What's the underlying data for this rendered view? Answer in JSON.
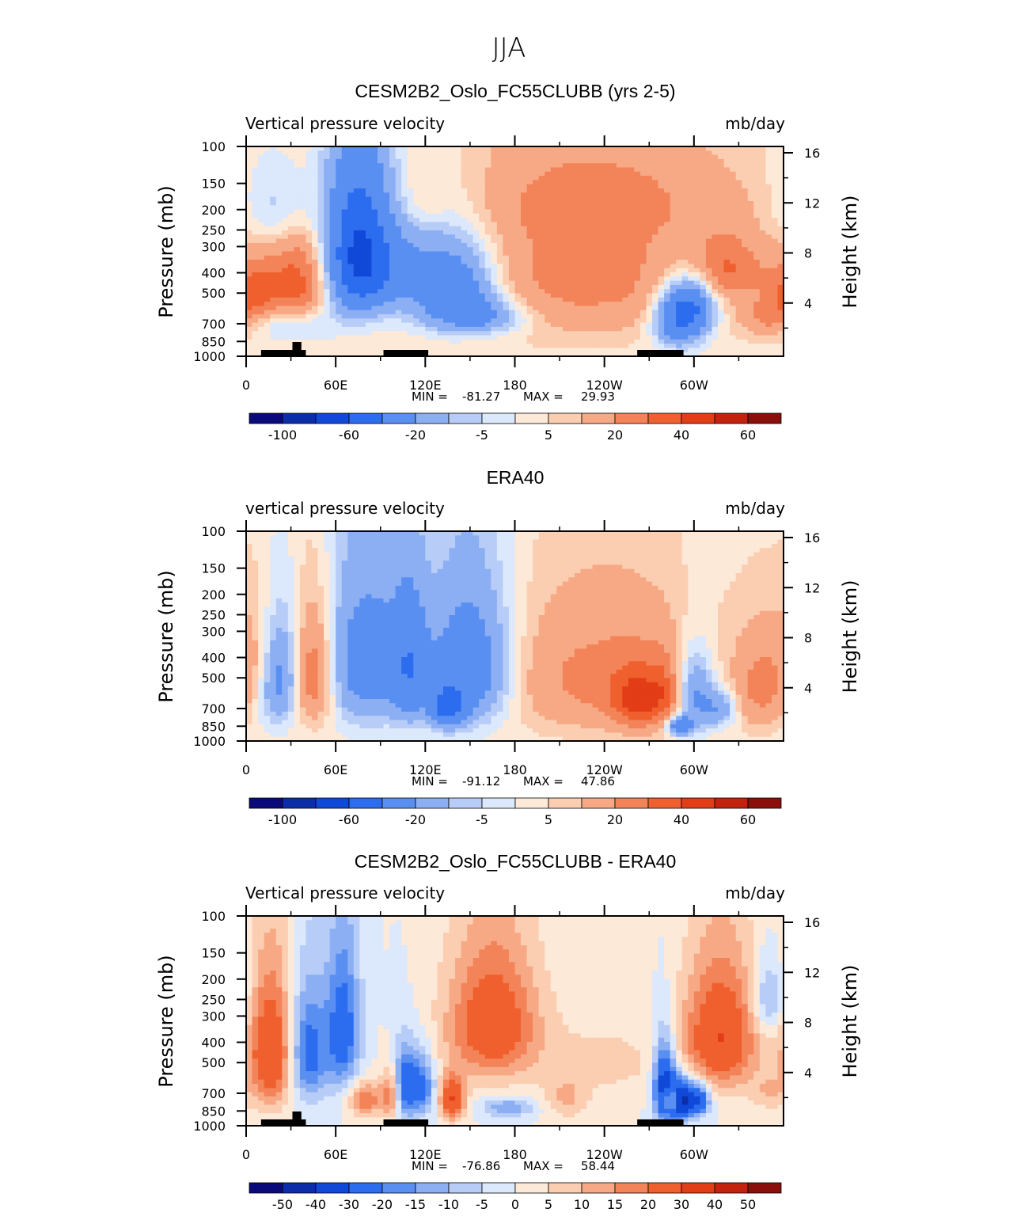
{
  "figure": {
    "title": "JJA"
  },
  "colors": {
    "levels_main": [
      -120,
      -100,
      -80,
      -60,
      -40,
      -20,
      -10,
      -5,
      0,
      5,
      10,
      20,
      30,
      40,
      50,
      60,
      80
    ],
    "levels_diff": [
      -60,
      -50,
      -40,
      -30,
      -20,
      -15,
      -10,
      -5,
      0,
      5,
      10,
      15,
      20,
      30,
      40,
      50,
      60
    ],
    "palette": [
      "#0a0a7a",
      "#0b2ea8",
      "#1048d8",
      "#2c6cef",
      "#5a8ff2",
      "#8caff4",
      "#b7cdf7",
      "#dce8fb",
      "#fde9d8",
      "#fbcdb1",
      "#f7a985",
      "#f38358",
      "#f0602e",
      "#e23d16",
      "#c2230f",
      "#8a0f0a"
    ]
  },
  "chart_data": [
    {
      "type": "heatmap",
      "title": "CESM2B2_Oslo_FC55CLUBB (yrs 2-5)",
      "left_label": "Vertical pressure velocity",
      "right_label": "mb/day",
      "ylabel": "Pressure (mb)",
      "y2label": "Height (km)",
      "xticks": [
        "0",
        "60E",
        "120E",
        "180",
        "120W",
        "60W"
      ],
      "xrange": [
        0,
        360
      ],
      "yticks": [
        "100",
        "150",
        "200",
        "250",
        "300",
        "400",
        "500",
        "700",
        "850",
        "1000"
      ],
      "y2ticks": [
        "16",
        "12",
        "8",
        "4"
      ],
      "stats": {
        "min_label": "MIN =",
        "min": "-81.27",
        "max_label": "MAX =",
        "max": "29.93"
      },
      "colorbar_labels": [
        "-100",
        "-60",
        "-20",
        "-5",
        "5",
        "20",
        "40",
        "60"
      ],
      "scale": "main",
      "blobs": [
        {
          "lon": 20,
          "p": 500,
          "w": 16,
          "h": 420,
          "v": 18
        },
        {
          "lon": 38,
          "p": 450,
          "w": 12,
          "h": 350,
          "v": 22
        },
        {
          "lon": 28,
          "p": 700,
          "w": 18,
          "h": 200,
          "v": -22
        },
        {
          "lon": 22,
          "p": 200,
          "w": 18,
          "h": 150,
          "v": -18
        },
        {
          "lon": 75,
          "p": 320,
          "w": 15,
          "h": 380,
          "v": -58
        },
        {
          "lon": 95,
          "p": 380,
          "w": 22,
          "h": 280,
          "v": -22
        },
        {
          "lon": 140,
          "p": 470,
          "w": 22,
          "h": 340,
          "v": -42
        },
        {
          "lon": 160,
          "p": 650,
          "w": 22,
          "h": 180,
          "v": -22
        },
        {
          "lon": 120,
          "p": 180,
          "w": 12,
          "h": 80,
          "v": 6
        },
        {
          "lon": 225,
          "p": 400,
          "w": 70,
          "h": 500,
          "v": 22
        },
        {
          "lon": 240,
          "p": 180,
          "w": 60,
          "h": 120,
          "v": 10
        },
        {
          "lon": 290,
          "p": 640,
          "w": 12,
          "h": 320,
          "v": -50
        },
        {
          "lon": 303,
          "p": 550,
          "w": 10,
          "h": 260,
          "v": -25
        },
        {
          "lon": 320,
          "p": 380,
          "w": 20,
          "h": 180,
          "v": 22
        },
        {
          "lon": 350,
          "p": 650,
          "w": 12,
          "h": 200,
          "v": 18
        },
        {
          "lon": 5,
          "p": 500,
          "w": 10,
          "h": 200,
          "v": 18
        }
      ],
      "bias": 2.5
    },
    {
      "type": "heatmap",
      "title": "ERA40",
      "left_label": "vertical pressure velocity",
      "right_label": "mb/day",
      "ylabel": "Pressure (mb)",
      "y2label": "Height (km)",
      "xticks": [
        "0",
        "60E",
        "120E",
        "180",
        "120W",
        "60W"
      ],
      "xrange": [
        0,
        360
      ],
      "yticks": [
        "100",
        "150",
        "200",
        "250",
        "300",
        "400",
        "500",
        "700",
        "850",
        "1000"
      ],
      "y2ticks": [
        "16",
        "12",
        "8",
        "4"
      ],
      "stats": {
        "min_label": "MIN =",
        "min": "-91.12",
        "max_label": "MAX =",
        "max": "47.86"
      },
      "colorbar_labels": [
        "-100",
        "-60",
        "-20",
        "-5",
        "5",
        "20",
        "40",
        "60"
      ],
      "scale": "main",
      "blobs": [
        {
          "lon": 22,
          "p": 500,
          "w": 10,
          "h": 400,
          "v": -30
        },
        {
          "lon": 45,
          "p": 480,
          "w": 10,
          "h": 420,
          "v": 32
        },
        {
          "lon": 8,
          "p": 400,
          "w": 10,
          "h": 350,
          "v": 12
        },
        {
          "lon": 82,
          "p": 420,
          "w": 22,
          "h": 500,
          "v": -32
        },
        {
          "lon": 110,
          "p": 450,
          "w": 8,
          "h": 450,
          "v": -25
        },
        {
          "lon": 150,
          "p": 450,
          "w": 20,
          "h": 480,
          "v": -38
        },
        {
          "lon": 135,
          "p": 700,
          "w": 8,
          "h": 220,
          "v": -40
        },
        {
          "lon": 240,
          "p": 500,
          "w": 50,
          "h": 500,
          "v": 22
        },
        {
          "lon": 262,
          "p": 650,
          "w": 12,
          "h": 300,
          "v": 28
        },
        {
          "lon": 282,
          "p": 600,
          "w": 8,
          "h": 300,
          "v": 18
        },
        {
          "lon": 300,
          "p": 600,
          "w": 10,
          "h": 380,
          "v": -32
        },
        {
          "lon": 318,
          "p": 700,
          "w": 8,
          "h": 200,
          "v": -20
        },
        {
          "lon": 345,
          "p": 550,
          "w": 12,
          "h": 400,
          "v": 20
        },
        {
          "lon": 290,
          "p": 850,
          "w": 6,
          "h": 120,
          "v": -40
        }
      ],
      "bias": 2
    },
    {
      "type": "heatmap",
      "title": "CESM2B2_Oslo_FC55CLUBB - ERA40",
      "left_label": "Vertical pressure velocity",
      "right_label": "mb/day",
      "ylabel": "Pressure (mb)",
      "y2label": "Height (km)",
      "xticks": [
        "0",
        "60E",
        "120E",
        "180",
        "120W",
        "60W"
      ],
      "xrange": [
        0,
        360
      ],
      "yticks": [
        "100",
        "150",
        "200",
        "250",
        "300",
        "400",
        "500",
        "700",
        "850",
        "1000"
      ],
      "y2ticks": [
        "16",
        "12",
        "8",
        "4"
      ],
      "stats": {
        "min_label": "MIN =",
        "min": "-76.86",
        "max_label": "MAX =",
        "max": "58.44"
      },
      "colorbar_labels": [
        "-50",
        "-40",
        "-30",
        "-20",
        "-15",
        "-10",
        "-5",
        "0",
        "5",
        "10",
        "15",
        "20",
        "30",
        "40",
        "50"
      ],
      "scale": "diff",
      "blobs": [
        {
          "lon": 18,
          "p": 450,
          "w": 12,
          "h": 450,
          "v": 32
        },
        {
          "lon": 40,
          "p": 450,
          "w": 10,
          "h": 400,
          "v": -28
        },
        {
          "lon": 65,
          "p": 350,
          "w": 8,
          "h": 400,
          "v": -25
        },
        {
          "lon": 80,
          "p": 750,
          "w": 8,
          "h": 200,
          "v": 20
        },
        {
          "lon": 105,
          "p": 650,
          "w": 6,
          "h": 350,
          "v": -30
        },
        {
          "lon": 118,
          "p": 650,
          "w": 6,
          "h": 300,
          "v": -22
        },
        {
          "lon": 98,
          "p": 700,
          "w": 5,
          "h": 300,
          "v": 25
        },
        {
          "lon": 138,
          "p": 750,
          "w": 6,
          "h": 250,
          "v": 30
        },
        {
          "lon": 165,
          "p": 330,
          "w": 22,
          "h": 350,
          "v": 28
        },
        {
          "lon": 175,
          "p": 820,
          "w": 12,
          "h": 120,
          "v": -15
        },
        {
          "lon": 240,
          "p": 500,
          "w": 30,
          "h": 300,
          "v": 7
        },
        {
          "lon": 280,
          "p": 650,
          "w": 5,
          "h": 400,
          "v": -40
        },
        {
          "lon": 290,
          "p": 750,
          "w": 5,
          "h": 250,
          "v": -45
        },
        {
          "lon": 302,
          "p": 750,
          "w": 6,
          "h": 200,
          "v": -35
        },
        {
          "lon": 285,
          "p": 750,
          "w": 4,
          "h": 150,
          "v": 35
        },
        {
          "lon": 318,
          "p": 380,
          "w": 18,
          "h": 380,
          "v": 30
        },
        {
          "lon": 350,
          "p": 250,
          "w": 8,
          "h": 150,
          "v": -15
        },
        {
          "lon": 215,
          "p": 750,
          "w": 10,
          "h": 250,
          "v": 10
        },
        {
          "lon": 350,
          "p": 700,
          "w": 8,
          "h": 200,
          "v": 8
        }
      ],
      "bias": 0
    }
  ]
}
